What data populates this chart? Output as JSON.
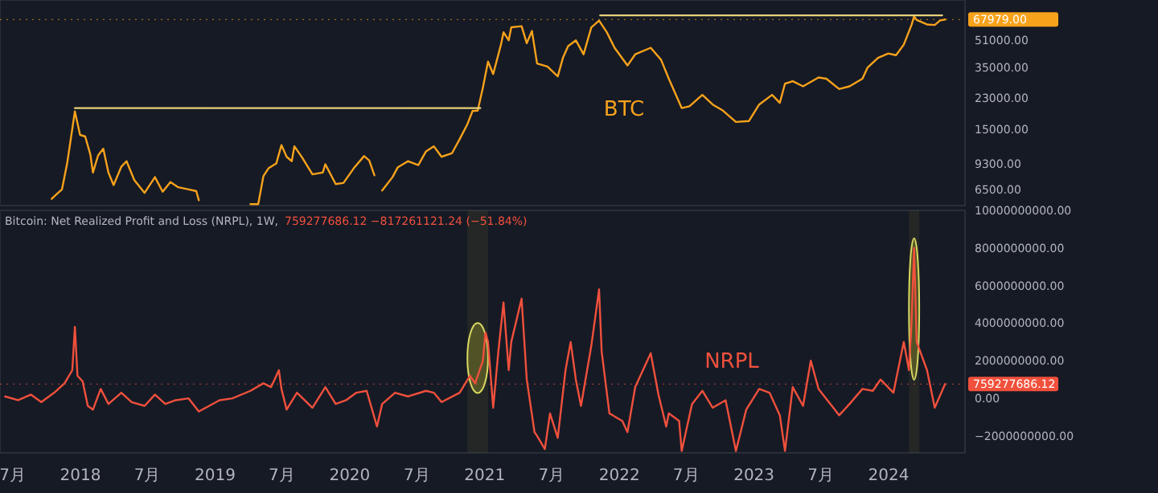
{
  "chart_data": [
    {
      "type": "line",
      "log": "y",
      "xlim": [
        "2017-05-28",
        "2024-07-26"
      ],
      "ylim": [
        5200,
        89000
      ],
      "yticks": [
        {
          "value": 6500,
          "label": "6500.00"
        },
        {
          "value": 9300,
          "label": "9300.00"
        },
        {
          "value": 15000,
          "label": "15000.00"
        },
        {
          "value": 23000,
          "label": "23000.00"
        },
        {
          "value": 35000,
          "label": "35000.00"
        },
        {
          "value": 51000,
          "label": "51000.00"
        }
      ],
      "tick_labels": "y",
      "ref_lines": [
        {
          "axis": "y",
          "value": 67979,
          "label": "67979.00",
          "color": "#f7a21b"
        }
      ],
      "annotations": [
        "BTC"
      ],
      "series": [
        {
          "type": "line",
          "color": "#f7a21b",
          "x": [
            "2017-10-15",
            "2017-10-29",
            "2017-11-12",
            "2017-11-26",
            "2017-12-10",
            "2017-12-17",
            "2017-12-31",
            "2018-01-14",
            "2018-01-28",
            "2018-02-04",
            "2018-02-18",
            "2018-03-04",
            "2018-03-18",
            "2018-04-01",
            "2018-04-22",
            "2018-05-06",
            "2018-05-27",
            "2018-06-24",
            "2018-07-22",
            "2018-08-12",
            "2018-09-02",
            "2018-09-23",
            "2018-10-21",
            "2018-11-11",
            "2018-11-18",
            "2018-12-16",
            "2019-04-07",
            "2019-04-28",
            "2019-05-12",
            "2019-05-26",
            "2019-06-16",
            "2019-06-30",
            "2019-07-14",
            "2019-07-28",
            "2019-08-04",
            "2019-08-25",
            "2019-09-22",
            "2019-10-20",
            "2019-10-27",
            "2019-11-24",
            "2019-12-15",
            "2020-01-12",
            "2020-02-09",
            "2020-02-23",
            "2020-03-08",
            "2020-03-15",
            "2020-03-29",
            "2020-04-26",
            "2020-05-10",
            "2020-06-07",
            "2020-07-05",
            "2020-07-26",
            "2020-08-16",
            "2020-09-06",
            "2020-10-04",
            "2020-10-25",
            "2020-11-15",
            "2020-11-29",
            "2020-12-13",
            "2020-12-27",
            "2021-01-10",
            "2021-01-24",
            "2021-02-14",
            "2021-02-21",
            "2021-03-07",
            "2021-03-14",
            "2021-04-11",
            "2021-04-25",
            "2021-05-09",
            "2021-05-23",
            "2021-06-20",
            "2021-07-18",
            "2021-08-01",
            "2021-08-15",
            "2021-09-05",
            "2021-09-26",
            "2021-10-17",
            "2021-11-07",
            "2021-11-28",
            "2021-12-19",
            "2022-01-23",
            "2022-02-13",
            "2022-03-27",
            "2022-04-24",
            "2022-05-15",
            "2022-06-19",
            "2022-07-10",
            "2022-08-14",
            "2022-09-11",
            "2022-10-09",
            "2022-11-13",
            "2022-12-18",
            "2023-01-15",
            "2023-02-19",
            "2023-03-12",
            "2023-03-26",
            "2023-04-16",
            "2023-05-14",
            "2023-06-25",
            "2023-07-16",
            "2023-08-20",
            "2023-09-17",
            "2023-10-22",
            "2023-11-05",
            "2023-12-03",
            "2023-12-31",
            "2024-01-21",
            "2024-02-11",
            "2024-03-03",
            "2024-03-10",
            "2024-03-17",
            "2024-04-14",
            "2024-05-05",
            "2024-05-19",
            "2024-06-02"
          ],
          "values": [
            5700,
            6100,
            6500,
            9300,
            15000,
            19100,
            13800,
            13500,
            10500,
            8200,
            10400,
            11400,
            8200,
            6900,
            8900,
            9600,
            7400,
            6200,
            7700,
            6300,
            7200,
            6700,
            6500,
            6350,
            5600,
            null,
            5300,
            5300,
            7800,
            8700,
            9300,
            12000,
            10200,
            9600,
            11800,
            10100,
            8000,
            8200,
            9200,
            7000,
            7100,
            8700,
            10300,
            9700,
            7900,
            null,
            6400,
            7700,
            8800,
            9600,
            9100,
            11000,
            11800,
            10200,
            10700,
            13000,
            16000,
            19200,
            19300,
            26500,
            38000,
            32000,
            48000,
            57000,
            51000,
            61000,
            62000,
            49000,
            58000,
            37000,
            35500,
            31000,
            40000,
            47000,
            51000,
            42000,
            61000,
            67000,
            57000,
            46000,
            36000,
            42000,
            46000,
            39000,
            30000,
            20000,
            20500,
            24000,
            21000,
            19300,
            16500,
            16700,
            21000,
            24000,
            21500,
            28000,
            29000,
            27000,
            30500,
            30000,
            26000,
            27000,
            30000,
            35000,
            40000,
            42500,
            41500,
            48000,
            63000,
            71000,
            67500,
            63500,
            63000,
            67000,
            67979
          ]
        },
        {
          "type": "line",
          "color": "#e8d27a",
          "x": [
            "2017-12-17",
            "2020-12-20"
          ],
          "values": [
            20000,
            20000
          ]
        },
        {
          "type": "line",
          "color": "#e8d27a",
          "x": [
            "2021-11-10",
            "2024-05-25"
          ],
          "values": [
            72000,
            72000
          ]
        }
      ]
    },
    {
      "type": "line",
      "title": "Bitcoin: Net Realized Profit and Loss (NRPL), 1W,",
      "subtitle": "759277686.12 −817261121.24 (−51.84%)",
      "xlim": [
        "2017-05-28",
        "2024-07-26"
      ],
      "ylim": [
        -2900000000,
        10000000000
      ],
      "xticks": [
        {
          "value": "2017-07",
          "label": "7月"
        },
        "2018",
        {
          "value": "2018-07",
          "label": "7月"
        },
        "2019",
        {
          "value": "2019-07",
          "label": "7月"
        },
        "2020",
        {
          "value": "2020-07",
          "label": "7月"
        },
        "2021",
        {
          "value": "2021-07",
          "label": "7月"
        },
        "2022",
        {
          "value": "2022-07",
          "label": "7月"
        },
        "2023",
        {
          "value": "2023-07",
          "label": "7月"
        },
        "2024"
      ],
      "yticks": [
        {
          "value": -2000000000,
          "label": "−2000000000.00"
        },
        {
          "value": 0,
          "label": "0.00"
        },
        {
          "value": 2000000000,
          "label": "2000000000.00"
        },
        {
          "value": 4000000000,
          "label": "4000000000.00"
        },
        {
          "value": 6000000000,
          "label": "6000000000.00"
        },
        {
          "value": 8000000000,
          "label": "8000000000.00"
        },
        {
          "value": 10000000000,
          "label": "10000000000.00"
        }
      ],
      "ref_lines": [
        {
          "axis": "y",
          "value": 759277686.12,
          "label": "759277686.12",
          "color": "#f0503c"
        }
      ],
      "bands": [
        {
          "axis": "x",
          "from": "2020-11-15",
          "to": "2021-01-10",
          "color": "#8a8a2a"
        },
        {
          "axis": "x",
          "from": "2024-02-25",
          "to": "2024-03-24",
          "color": "#8a8a2a"
        }
      ],
      "annotations": [
        "NRPL"
      ],
      "series": [
        {
          "type": "line",
          "color": "#f0503c",
          "x": [
            "2017-06-11",
            "2017-07-16",
            "2017-08-20",
            "2017-09-17",
            "2017-10-22",
            "2017-11-19",
            "2017-12-10",
            "2017-12-17",
            "2017-12-24",
            "2018-01-07",
            "2018-01-21",
            "2018-02-04",
            "2018-02-25",
            "2018-03-18",
            "2018-04-22",
            "2018-05-20",
            "2018-06-24",
            "2018-07-22",
            "2018-08-19",
            "2018-09-16",
            "2018-10-21",
            "2018-11-18",
            "2018-12-16",
            "2019-01-13",
            "2019-02-17",
            "2019-04-07",
            "2019-05-12",
            "2019-06-02",
            "2019-06-23",
            "2019-06-30",
            "2019-07-14",
            "2019-08-11",
            "2019-09-22",
            "2019-10-27",
            "2019-11-24",
            "2019-12-22",
            "2020-01-19",
            "2020-02-16",
            "2020-03-15",
            "2020-03-29",
            "2020-05-03",
            "2020-06-07",
            "2020-07-26",
            "2020-08-16",
            "2020-09-06",
            "2020-10-25",
            "2020-11-22",
            "2020-12-06",
            "2020-12-27",
            "2021-01-03",
            "2021-01-10",
            "2021-01-24",
            "2021-02-07",
            "2021-02-21",
            "2021-03-07",
            "2021-03-14",
            "2021-04-11",
            "2021-04-25",
            "2021-05-16",
            "2021-05-23",
            "2021-06-13",
            "2021-06-27",
            "2021-07-18",
            "2021-08-08",
            "2021-08-22",
            "2021-09-05",
            "2021-09-19",
            "2021-10-17",
            "2021-11-07",
            "2021-11-14",
            "2021-12-05",
            "2022-01-09",
            "2022-01-23",
            "2022-02-13",
            "2022-03-27",
            "2022-04-17",
            "2022-05-08",
            "2022-05-15",
            "2022-06-12",
            "2022-06-19",
            "2022-07-17",
            "2022-08-14",
            "2022-09-11",
            "2022-10-16",
            "2022-11-13",
            "2022-12-11",
            "2023-01-15",
            "2023-02-12",
            "2023-03-12",
            "2023-03-26",
            "2023-04-16",
            "2023-05-14",
            "2023-06-04",
            "2023-06-25",
            "2023-08-20",
            "2023-09-17",
            "2023-10-22",
            "2023-11-19",
            "2023-12-10",
            "2024-01-14",
            "2024-02-11",
            "2024-02-25",
            "2024-03-03",
            "2024-03-10",
            "2024-03-17",
            "2024-04-14",
            "2024-05-05",
            "2024-06-02"
          ],
          "values": [
            100000000,
            -100000000,
            200000000,
            -200000000,
            300000000,
            800000000,
            1500000000,
            3800000000,
            1200000000,
            900000000,
            -400000000,
            -600000000,
            500000000,
            -300000000,
            300000000,
            -200000000,
            -400000000,
            200000000,
            -300000000,
            -100000000,
            0,
            -700000000,
            -400000000,
            -100000000,
            0,
            400000000,
            800000000,
            600000000,
            1500000000,
            500000000,
            -600000000,
            300000000,
            -500000000,
            600000000,
            -300000000,
            -100000000,
            300000000,
            400000000,
            -1500000000,
            -300000000,
            300000000,
            100000000,
            400000000,
            300000000,
            -200000000,
            300000000,
            1200000000,
            800000000,
            2000000000,
            3500000000,
            3000000000,
            -500000000,
            2500000000,
            5100000000,
            1500000000,
            3000000000,
            5300000000,
            1000000000,
            -1800000000,
            -2000000000,
            -2700000000,
            -800000000,
            -2100000000,
            1500000000,
            3000000000,
            1000000000,
            -400000000,
            2800000000,
            5800000000,
            2500000000,
            -800000000,
            -1200000000,
            -1800000000,
            600000000,
            2400000000,
            200000000,
            -1500000000,
            -800000000,
            -1200000000,
            -2800000000,
            -300000000,
            400000000,
            -500000000,
            -100000000,
            -2800000000,
            -600000000,
            500000000,
            300000000,
            -900000000,
            -2800000000,
            600000000,
            -400000000,
            2000000000,
            500000000,
            -900000000,
            -300000000,
            500000000,
            400000000,
            1000000000,
            300000000,
            3000000000,
            1500000000,
            4000000000,
            8000000000,
            3000000000,
            1500000000,
            -500000000,
            760000000
          ]
        }
      ]
    }
  ]
}
